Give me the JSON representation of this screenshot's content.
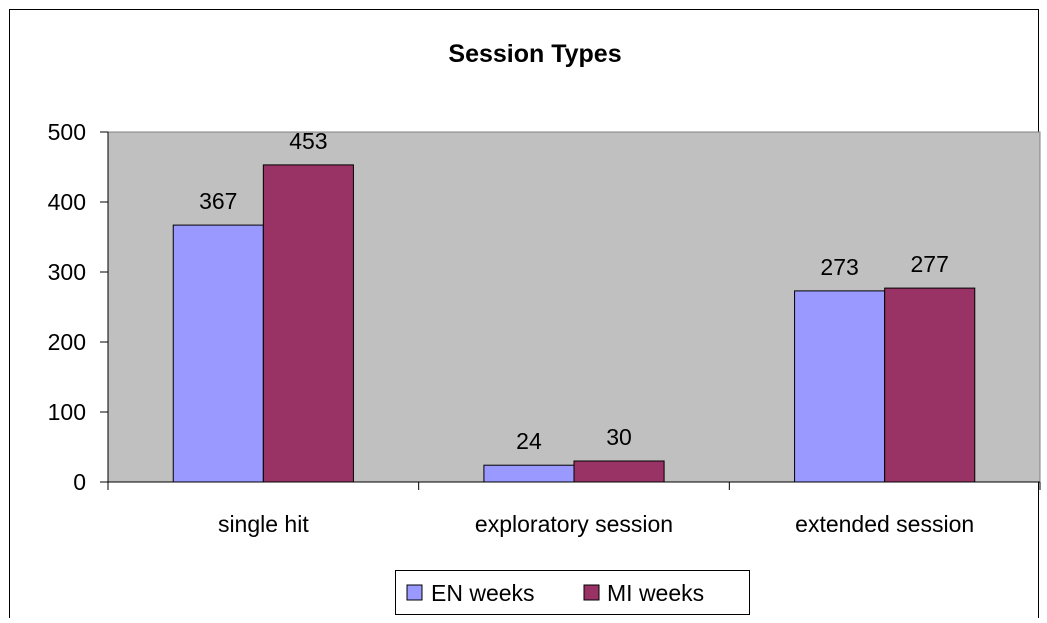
{
  "chart_data": {
    "type": "bar",
    "title": "Session Types",
    "categories": [
      "single hit",
      "exploratory session",
      "extended session"
    ],
    "series": [
      {
        "name": "EN weeks",
        "values": [
          367,
          24,
          273
        ],
        "color": "#9999ff"
      },
      {
        "name": "MI weeks",
        "values": [
          453,
          30,
          277
        ],
        "color": "#993366"
      }
    ],
    "ylim": [
      0,
      500
    ],
    "yticks": [
      0,
      100,
      200,
      300,
      400,
      500
    ],
    "xlabel": "",
    "ylabel": "",
    "grid": false,
    "plot_background": "#c0c0c0",
    "legend_position": "bottom-center",
    "data_labels": true
  }
}
